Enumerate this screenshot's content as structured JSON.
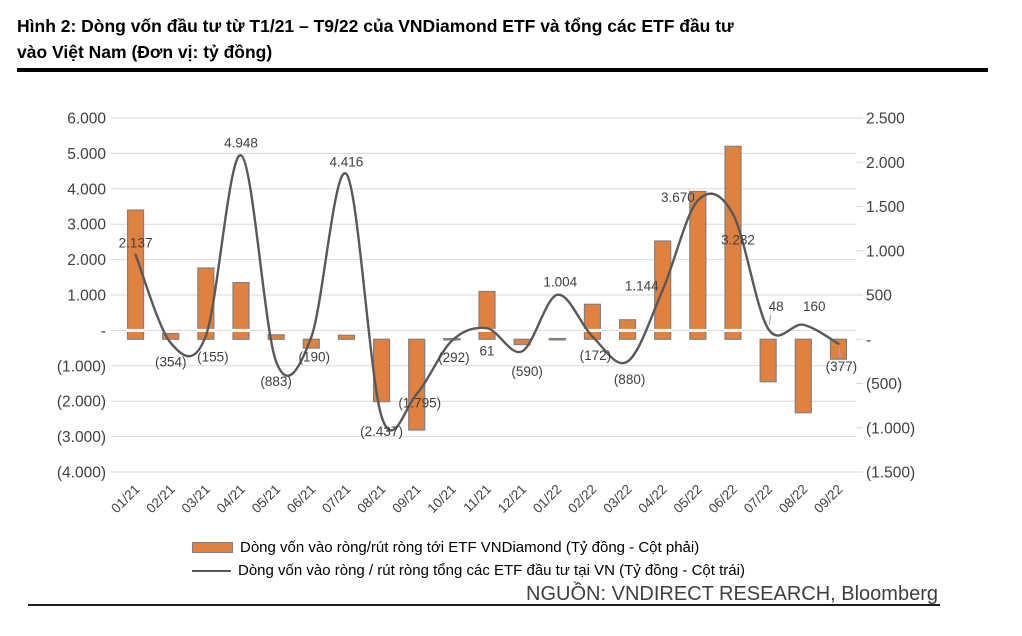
{
  "figure": {
    "title_line1": "Hình 2: Dòng vốn đầu tư từ T1/21 – T9/22 của VNDiamond ETF và tổng các ETF đầu tư",
    "title_line2": "vào Việt Nam (Đơn vị: tỷ đồng)"
  },
  "source": "NGUỒN: VNDIRECT RESEARCH, Bloomberg",
  "chart_data": {
    "type": "bar",
    "combo": "bar+line dual axis",
    "title": "Dòng vốn đầu tư từ T1/21 – T9/22 của VNDiamond ETF và tổng các ETF đầu tư vào Việt Nam",
    "unit": "tỷ đồng",
    "categories": [
      "01/21",
      "02/21",
      "03/21",
      "04/21",
      "05/21",
      "06/21",
      "07/21",
      "08/21",
      "09/21",
      "10/21",
      "11/21",
      "12/21",
      "01/22",
      "02/22",
      "03/22",
      "04/22",
      "05/22",
      "06/22",
      "07/22",
      "08/22",
      "09/22"
    ],
    "series": [
      {
        "name": "Dòng vốn vào ròng/rút ròng tới ETF VNDiamond (Tỷ đồng - Cột phải)",
        "type": "bar",
        "axis": "right",
        "color": "#E0813F",
        "values": [
          1460,
          65,
          805,
          640,
          50,
          -100,
          45,
          -705,
          -1025,
          -15,
          540,
          -60,
          -15,
          395,
          220,
          1110,
          1670,
          2180,
          -480,
          -830,
          -225
        ]
      },
      {
        "name": "Dòng vốn vào ròng / rút ròng tổng các ETF đầu tư tại VN (Tỷ đồng - Cột trái)",
        "type": "line",
        "axis": "left",
        "color": "#595959",
        "values": [
          2137,
          -354,
          -155,
          4948,
          -883,
          -190,
          4416,
          -2437,
          -1795,
          -292,
          61,
          -590,
          1004,
          -172,
          -880,
          1144,
          3670,
          3282,
          48,
          160,
          -377
        ],
        "labels": [
          "2.137",
          "(354)",
          "(155)",
          "4.948",
          "(883)",
          "(190)",
          "4.416",
          "(2.437)",
          "(1.795)",
          "(292)",
          "61",
          "(590)",
          "1.004",
          "(172)",
          "(880)",
          "1.144",
          "3.670",
          "3.282",
          "48",
          "160",
          "(377)"
        ]
      }
    ],
    "left_axis": {
      "min": -4000,
      "max": 6000,
      "tick_step": 1000,
      "ticks": [
        "6.000",
        "5.000",
        "4.000",
        "3.000",
        "2.000",
        "1.000",
        "-",
        "(1.000)",
        "(2.000)",
        "(3.000)",
        "(4.000)"
      ]
    },
    "right_axis": {
      "min": -1500,
      "max": 2500,
      "tick_step": 500,
      "ticks": [
        "2.500",
        "2.000",
        "1.500",
        "1.000",
        "500",
        "-",
        "(500)",
        "(1.000)",
        "(1.500)"
      ]
    },
    "grid": "horizontal",
    "legend_position": "bottom",
    "colors": {
      "grid": "#D9D9D9",
      "bar_border": "#808080",
      "axis_text": "#3F3F3F",
      "leader": "#A6A6A6",
      "zero_stripe": "#FFFFFF"
    }
  }
}
